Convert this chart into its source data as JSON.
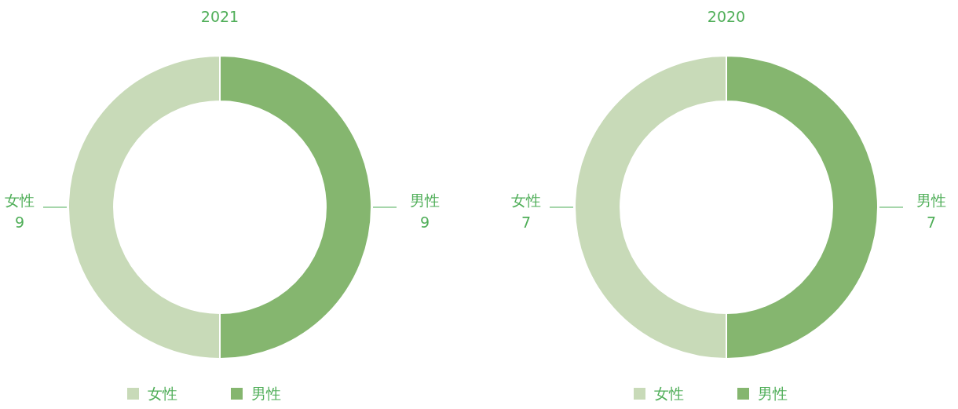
{
  "chart_data": [
    {
      "type": "donut",
      "title": "2021",
      "categories": [
        "女性",
        "男性"
      ],
      "values": [
        9,
        9
      ],
      "colors": [
        "#c8dab8",
        "#85b66f"
      ],
      "data_labels": true,
      "legend": "bottom"
    },
    {
      "type": "donut",
      "title": "2020",
      "categories": [
        "女性",
        "男性"
      ],
      "values": [
        7,
        7
      ],
      "colors": [
        "#c8dab8",
        "#85b66f"
      ],
      "data_labels": true,
      "legend": "bottom"
    }
  ]
}
